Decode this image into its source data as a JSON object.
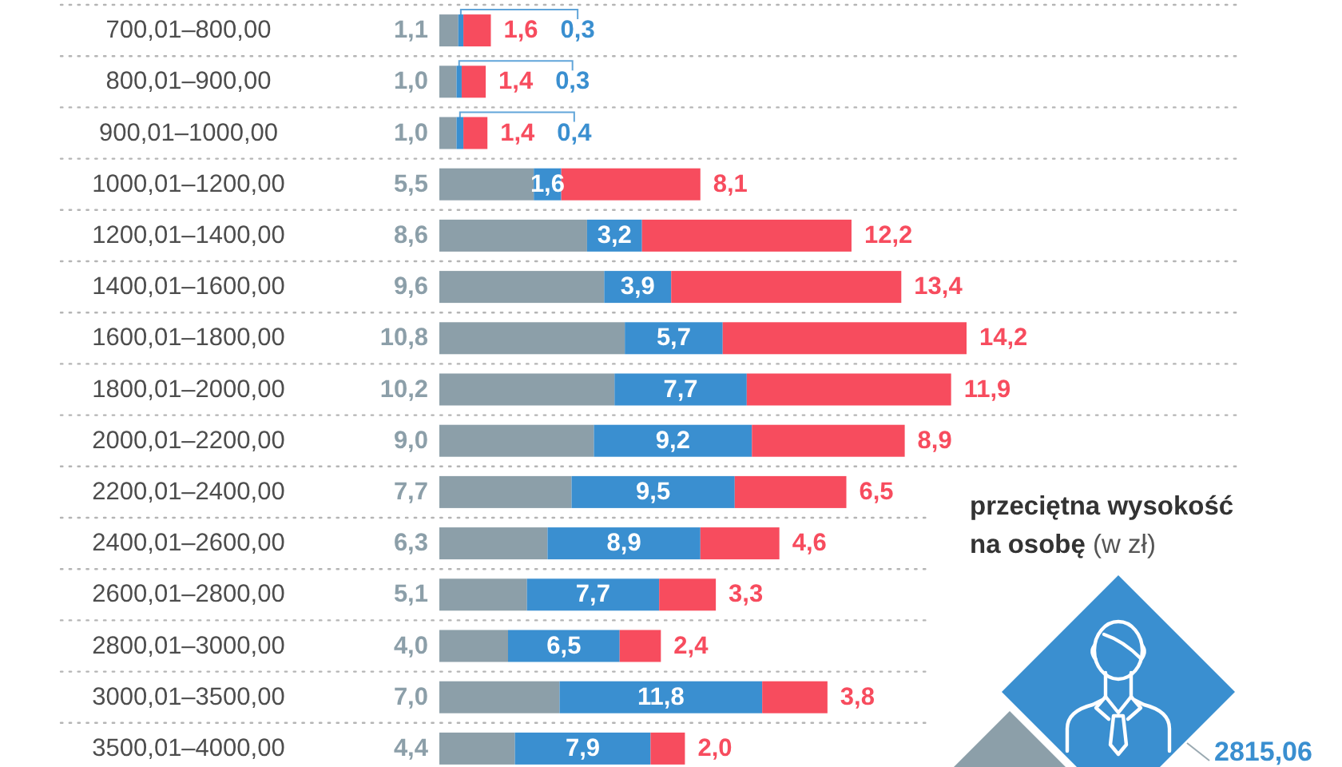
{
  "chart_data": {
    "type": "bar",
    "orientation": "horizontal",
    "stacked": true,
    "grid": "y",
    "tick_labels": "y",
    "categories": [
      "700,01–800,00",
      "800,01–900,00",
      "900,01–1000,00",
      "1000,01–1200,00",
      "1200,01–1400,00",
      "1400,01–1600,00",
      "1600,01–1800,00",
      "1800,01–2000,00",
      "2000,01–2200,00",
      "2200,01–2400,00",
      "2400,01–2600,00",
      "2600,01–2800,00",
      "2800,01–3000,00",
      "3000,01–3500,00",
      "3500,01–4000,00"
    ],
    "series": [
      {
        "color": "#8c9fa9",
        "values": [
          1.1,
          1.0,
          1.0,
          5.5,
          8.6,
          9.6,
          10.8,
          10.2,
          9.0,
          7.7,
          6.3,
          5.1,
          4.0,
          7.0,
          4.4
        ],
        "value_labels": [
          "1,1",
          "1,0",
          "1,0",
          "5,5",
          "8,6",
          "9,6",
          "10,8",
          "10,2",
          "9,0",
          "7,7",
          "6,3",
          "5,1",
          "4,0",
          "7,0",
          "4,4"
        ]
      },
      {
        "color": "#3a8fd0",
        "values": [
          0.3,
          0.3,
          0.4,
          1.6,
          3.2,
          3.9,
          5.7,
          7.7,
          9.2,
          9.5,
          8.9,
          7.7,
          6.5,
          11.8,
          7.9
        ],
        "value_labels": [
          "0,3",
          "0,3",
          "0,4",
          "1,6",
          "3,2",
          "3,9",
          "5,7",
          "7,7",
          "9,2",
          "9,5",
          "8,9",
          "7,7",
          "6,5",
          "11,8",
          "7,9"
        ]
      },
      {
        "color": "#f74c5e",
        "values": [
          1.6,
          1.4,
          1.4,
          8.1,
          12.2,
          13.4,
          14.2,
          11.9,
          8.9,
          6.5,
          4.6,
          3.3,
          2.4,
          3.8,
          2.0
        ],
        "value_labels": [
          "1,6",
          "1,4",
          "1,4",
          "8,1",
          "12,2",
          "13,4",
          "14,2",
          "11,9",
          "8,9",
          "6,5",
          "4,6",
          "3,3",
          "2,4",
          "3,8",
          "2,0"
        ]
      }
    ],
    "annotations": [
      "przeciętna wysokość na osobę (w zł)",
      "2815,06"
    ]
  }
}
